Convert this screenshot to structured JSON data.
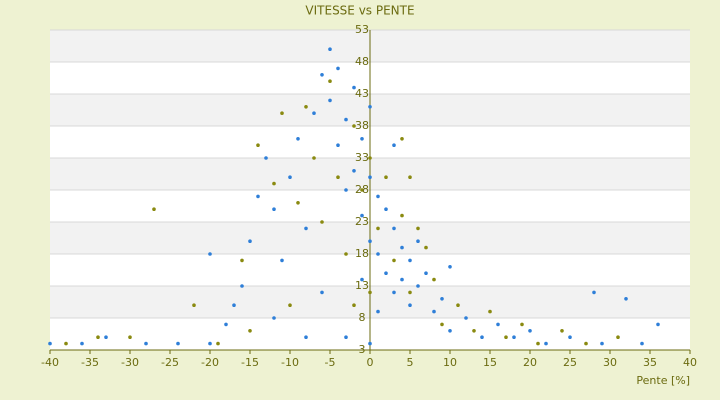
{
  "chart_data": {
    "type": "scatter",
    "title": "VITESSE vs PENTE",
    "x_label": "Pente [%]",
    "xlim": [
      -40,
      40
    ],
    "xticks": [
      -40,
      -35,
      -30,
      -25,
      -20,
      -15,
      -10,
      -5,
      0,
      5,
      10,
      15,
      20,
      25,
      30,
      35,
      40
    ],
    "ylim": [
      3,
      53
    ],
    "yticks": [
      3,
      8,
      13,
      18,
      23,
      28,
      33,
      38,
      43,
      48,
      53
    ],
    "grid": true,
    "series": [
      {
        "color": "#2f7fd8",
        "x": [
          -40,
          -36,
          -33,
          -28,
          -24,
          -20,
          -18,
          -17,
          -16,
          -15,
          -14,
          -13,
          -12,
          -11,
          -10,
          -9,
          -8,
          -7,
          -6,
          -5,
          -5,
          -4,
          -4,
          -3,
          -3,
          -2,
          -2,
          -1,
          -1,
          0,
          0,
          0,
          1,
          1,
          2,
          2,
          3,
          3,
          4,
          4,
          5,
          5,
          6,
          7,
          8,
          9,
          10,
          12,
          14,
          16,
          18,
          20,
          22,
          25,
          28,
          29,
          32,
          34,
          36,
          -20,
          -6,
          -3,
          0,
          -8,
          -12,
          3,
          1,
          -1,
          6,
          10
        ],
        "values": [
          4,
          4,
          5,
          4,
          4,
          4,
          7,
          10,
          13,
          20,
          27,
          33,
          25,
          17,
          30,
          36,
          22,
          40,
          46,
          50,
          42,
          47,
          35,
          39,
          28,
          44,
          31,
          36,
          24,
          41,
          30,
          20,
          27,
          18,
          25,
          15,
          22,
          12,
          19,
          14,
          17,
          10,
          13,
          15,
          9,
          11,
          6,
          8,
          5,
          7,
          5,
          6,
          4,
          5,
          12,
          4,
          11,
          4,
          7,
          18,
          12,
          5,
          4,
          5,
          8,
          35,
          9,
          14,
          20,
          16
        ]
      },
      {
        "color": "#8a8a10",
        "x": [
          -38,
          -34,
          -30,
          -27,
          -22,
          -19,
          -16,
          -14,
          -12,
          -11,
          -9,
          -8,
          -7,
          -6,
          -5,
          -4,
          -3,
          -2,
          -1,
          0,
          1,
          2,
          3,
          4,
          4,
          5,
          6,
          7,
          8,
          9,
          11,
          13,
          15,
          17,
          19,
          21,
          24,
          27,
          31,
          -2,
          -10,
          5,
          0,
          -15
        ],
        "values": [
          4,
          5,
          5,
          25,
          10,
          4,
          17,
          35,
          29,
          40,
          26,
          41,
          33,
          23,
          45,
          30,
          18,
          38,
          28,
          33,
          22,
          30,
          17,
          36,
          24,
          12,
          22,
          19,
          14,
          7,
          10,
          6,
          9,
          5,
          7,
          4,
          6,
          4,
          5,
          10,
          10,
          30,
          12,
          6
        ]
      }
    ]
  }
}
